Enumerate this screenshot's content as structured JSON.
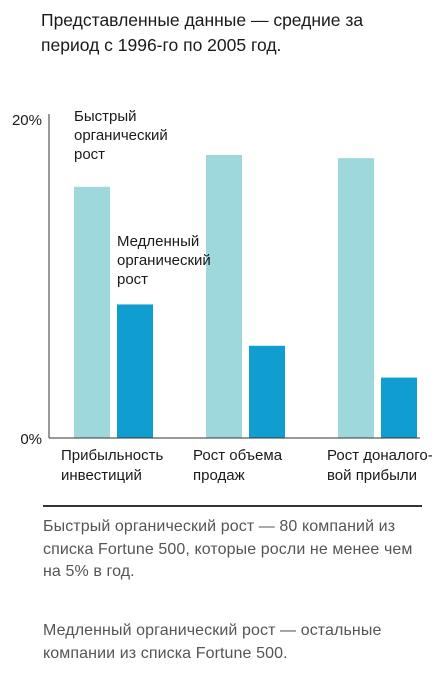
{
  "subtitle": "Представленные данные — средние за период с 1996-го по 2005 год.",
  "notes": [
    "Быстрый органический рост — 80 компаний из списка Fortune 500, которые росли не менее чем на 5% в год.",
    "Медленный органический рост — остальные компании из списка Fortune 500."
  ],
  "colors": {
    "fast": "#9fd8dc",
    "slow": "#0f9ecf",
    "axis": "#333333",
    "text": "#1a1a1a",
    "note": "#555555"
  },
  "chart_data": {
    "type": "bar",
    "categories": [
      [
        "Прибыльность",
        "инвестиций"
      ],
      [
        "Рост объема",
        "продаж"
      ],
      [
        "Рост доналого-",
        "вой прибыли"
      ]
    ],
    "series": [
      {
        "name": [
          "Быстрый",
          "органический",
          "рост"
        ],
        "values": [
          15.8,
          17.8,
          17.6
        ]
      },
      {
        "name": [
          "Медленный",
          "органический",
          "рост"
        ],
        "values": [
          8.4,
          5.8,
          3.8
        ]
      }
    ],
    "ylim": [
      0,
      20
    ],
    "yticks": [
      "0%",
      "20%"
    ],
    "legend": "inline"
  }
}
